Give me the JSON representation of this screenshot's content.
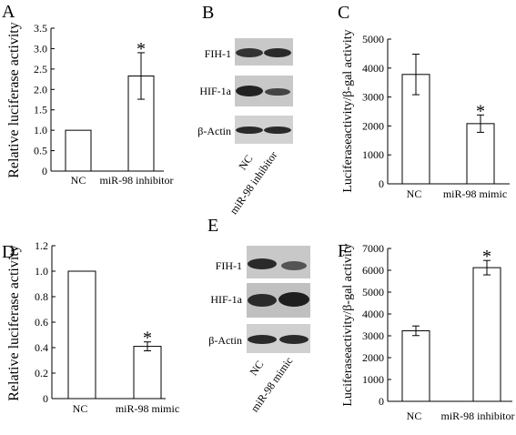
{
  "panels": {
    "A": {
      "letter": "A"
    },
    "B": {
      "letter": "B"
    },
    "C": {
      "letter": "C"
    },
    "D": {
      "letter": "D"
    },
    "E": {
      "letter": "E"
    },
    "F": {
      "letter": "F"
    }
  },
  "chart_data": [
    {
      "id": "A",
      "type": "bar",
      "ylabel": "Relative luciferase activity",
      "categories": [
        "NC",
        "miR-98  inhibitor"
      ],
      "values": [
        1.0,
        2.33
      ],
      "errors": [
        0,
        0.57
      ],
      "significance": [
        "",
        "*"
      ],
      "ylim": [
        0,
        3.5
      ],
      "yticks": [
        "0",
        "0.5",
        "1.0",
        "1.5",
        "2.0",
        "2.5",
        "3.0",
        "3.5"
      ]
    },
    {
      "id": "C",
      "type": "bar",
      "ylabel": "Luciferaseactivity/β-gal activity",
      "categories": [
        "NC",
        "miR-98 mimic"
      ],
      "values": [
        3780,
        2080
      ],
      "errors": [
        700,
        300
      ],
      "significance": [
        "",
        "*"
      ],
      "ylim": [
        0,
        5000
      ],
      "yticks": [
        "0",
        "1000",
        "2000",
        "3000",
        "4000",
        "5000"
      ]
    },
    {
      "id": "D",
      "type": "bar",
      "ylabel": "Relative luciferase activity",
      "categories": [
        "NC",
        "miR-98 mimic"
      ],
      "values": [
        1.0,
        0.41
      ],
      "errors": [
        0,
        0.035
      ],
      "significance": [
        "",
        "*"
      ],
      "ylim": [
        0,
        1.2
      ],
      "yticks": [
        "0",
        "0.2",
        "0.4",
        "0.6",
        "0.8",
        "1.0",
        "1.2"
      ]
    },
    {
      "id": "F",
      "type": "bar",
      "ylabel": "Luciferaseactivity/β-gal activity",
      "categories": [
        "NC",
        "miR-98  inhibitor"
      ],
      "values": [
        3230,
        6120
      ],
      "errors": [
        220,
        330
      ],
      "significance": [
        "",
        "*"
      ],
      "ylim": [
        0,
        7000
      ],
      "yticks": [
        "0",
        "1000",
        "2000",
        "3000",
        "4000",
        "5000",
        "6000",
        "7000"
      ]
    }
  ],
  "blots": {
    "B": {
      "rows": [
        "FIH-1",
        "HIF-1a",
        "β-Actin"
      ],
      "lanes": [
        "NC",
        "miR-98  inhibitor"
      ]
    },
    "E": {
      "rows": [
        "FIH-1",
        "HIF-1a",
        "β-Actin"
      ],
      "lanes": [
        "NC",
        "miR-98 mimic"
      ]
    }
  },
  "colors": {
    "bar_fill": "#ffffff",
    "stroke": "#000000",
    "blot_bg": "#c8c8c8",
    "band": "#2a2a2a"
  }
}
